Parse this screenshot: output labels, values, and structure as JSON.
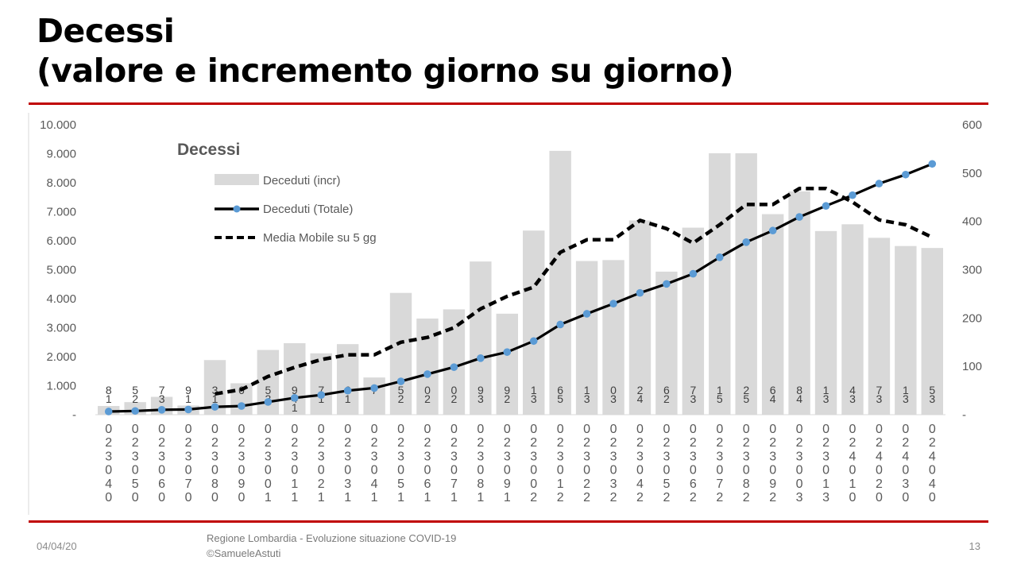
{
  "slide": {
    "title_line1": "Decessi",
    "title_line2": "(valore e incremento giorno su giorno)",
    "footer_date": "04/04/20",
    "footer_source_line1": "Regione Lombardia - Evoluzione situazione COVID-19",
    "footer_source_line2": "©SamueleAstuti",
    "page_number": "13",
    "accent_color": "#c00000"
  },
  "chart_data": {
    "type": "bar",
    "title": "Decessi",
    "legend_position": "top-left",
    "grid": false,
    "categories": [
      [
        "0",
        "2",
        "3",
        "0",
        "4",
        "0"
      ],
      [
        "0",
        "2",
        "3",
        "0",
        "5",
        "0"
      ],
      [
        "0",
        "2",
        "3",
        "0",
        "6",
        "0"
      ],
      [
        "0",
        "2",
        "3",
        "0",
        "7",
        "0"
      ],
      [
        "0",
        "2",
        "3",
        "0",
        "8",
        "0"
      ],
      [
        "0",
        "2",
        "3",
        "0",
        "9",
        "0"
      ],
      [
        "0",
        "2",
        "3",
        "0",
        "0",
        "1"
      ],
      [
        "0",
        "2",
        "3",
        "0",
        "1",
        "1"
      ],
      [
        "0",
        "2",
        "3",
        "0",
        "2",
        "1"
      ],
      [
        "0",
        "2",
        "3",
        "0",
        "3",
        "1"
      ],
      [
        "0",
        "2",
        "3",
        "0",
        "4",
        "1"
      ],
      [
        "0",
        "2",
        "3",
        "0",
        "5",
        "1"
      ],
      [
        "0",
        "2",
        "3",
        "0",
        "6",
        "1"
      ],
      [
        "0",
        "2",
        "3",
        "0",
        "7",
        "1"
      ],
      [
        "0",
        "2",
        "3",
        "0",
        "8",
        "1"
      ],
      [
        "0",
        "2",
        "3",
        "0",
        "9",
        "1"
      ],
      [
        "0",
        "2",
        "3",
        "0",
        "0",
        "2"
      ],
      [
        "0",
        "2",
        "3",
        "0",
        "1",
        "2"
      ],
      [
        "0",
        "2",
        "3",
        "0",
        "2",
        "2"
      ],
      [
        "0",
        "2",
        "3",
        "0",
        "3",
        "2"
      ],
      [
        "0",
        "2",
        "3",
        "0",
        "4",
        "2"
      ],
      [
        "0",
        "2",
        "3",
        "0",
        "5",
        "2"
      ],
      [
        "0",
        "2",
        "3",
        "0",
        "6",
        "2"
      ],
      [
        "0",
        "2",
        "3",
        "0",
        "7",
        "2"
      ],
      [
        "0",
        "2",
        "3",
        "0",
        "8",
        "2"
      ],
      [
        "0",
        "2",
        "3",
        "0",
        "9",
        "2"
      ],
      [
        "0",
        "2",
        "3",
        "0",
        "0",
        "3"
      ],
      [
        "0",
        "2",
        "3",
        "0",
        "1",
        "3"
      ],
      [
        "0",
        "2",
        "4",
        "0",
        "1",
        "0"
      ],
      [
        "0",
        "2",
        "4",
        "0",
        "2",
        "0"
      ],
      [
        "0",
        "2",
        "4",
        "0",
        "3",
        "0"
      ],
      [
        "0",
        "2",
        "4",
        "0",
        "4",
        "0"
      ]
    ],
    "y_left": {
      "ticks": [
        "10.000",
        "9.000",
        "8.000",
        "7.000",
        "6.000",
        "5.000",
        "4.000",
        "3.000",
        "2.000",
        "1.000",
        "-"
      ],
      "ylim": [
        0,
        10000
      ]
    },
    "y_right": {
      "ticks": [
        "600",
        "500",
        "400",
        "300",
        "200",
        "100",
        "-"
      ],
      "ylim": [
        0,
        600
      ]
    },
    "bar_labels": [
      [
        "8",
        "1"
      ],
      [
        "5",
        "2"
      ],
      [
        "7",
        "3"
      ],
      [
        "9",
        "1"
      ],
      [
        "3",
        "1"
      ],
      [
        "6"
      ],
      [
        "5",
        "3"
      ],
      [
        "9",
        "4",
        "1"
      ],
      [
        "7",
        "1"
      ],
      [
        "6",
        "1"
      ],
      [
        "7"
      ],
      [
        "5",
        "2"
      ],
      [
        "0",
        "2"
      ],
      [
        "0",
        "2"
      ],
      [
        "9",
        "3"
      ],
      [
        "9",
        "2"
      ],
      [
        "1",
        "3"
      ],
      [
        "6",
        "5"
      ],
      [
        "1",
        "3"
      ],
      [
        "0",
        "3"
      ],
      [
        "2",
        "4"
      ],
      [
        "6",
        "2"
      ],
      [
        "7",
        "3"
      ],
      [
        "1",
        "5"
      ],
      [
        "2",
        "5"
      ],
      [
        "6",
        "4"
      ],
      [
        "8",
        "4"
      ],
      [
        "1",
        "3"
      ],
      [
        "4",
        "3"
      ],
      [
        "7",
        "3"
      ],
      [
        "1",
        "3"
      ],
      [
        "5",
        "3"
      ]
    ],
    "series": [
      {
        "name": "Deceduti (incr)",
        "axis": "right",
        "style": "bar",
        "color": "#d9d9d9",
        "values": [
          18,
          26,
          37,
          19,
          113,
          65,
          134,
          148,
          127,
          146,
          77,
          252,
          199,
          218,
          317,
          209,
          381,
          546,
          318,
          320,
          402,
          296,
          387,
          541,
          541,
          415,
          462,
          380,
          394,
          366,
          349,
          345
        ]
      },
      {
        "name": "Deceduti (Totale)",
        "axis": "left",
        "style": "line-marker",
        "color": "#000000",
        "marker_color": "#5b9bd5",
        "values": [
          110,
          130,
          170,
          180,
          270,
          300,
          440,
          580,
          680,
          830,
          920,
          1150,
          1400,
          1640,
          1950,
          2160,
          2540,
          3110,
          3480,
          3830,
          4200,
          4510,
          4860,
          5430,
          5950,
          6350,
          6820,
          7200,
          7570,
          7970,
          8280,
          8650
        ]
      },
      {
        "name": "Media Mobile su 5 gg",
        "axis": "right",
        "style": "dashed-line",
        "color": "#000000",
        "values": [
          null,
          null,
          null,
          null,
          43,
          52,
          79,
          98,
          114,
          124,
          124,
          150,
          160,
          180,
          219,
          245,
          264,
          336,
          362,
          362,
          402,
          385,
          355,
          393,
          435,
          435,
          468,
          468,
          440,
          403,
          393,
          367
        ]
      }
    ]
  }
}
